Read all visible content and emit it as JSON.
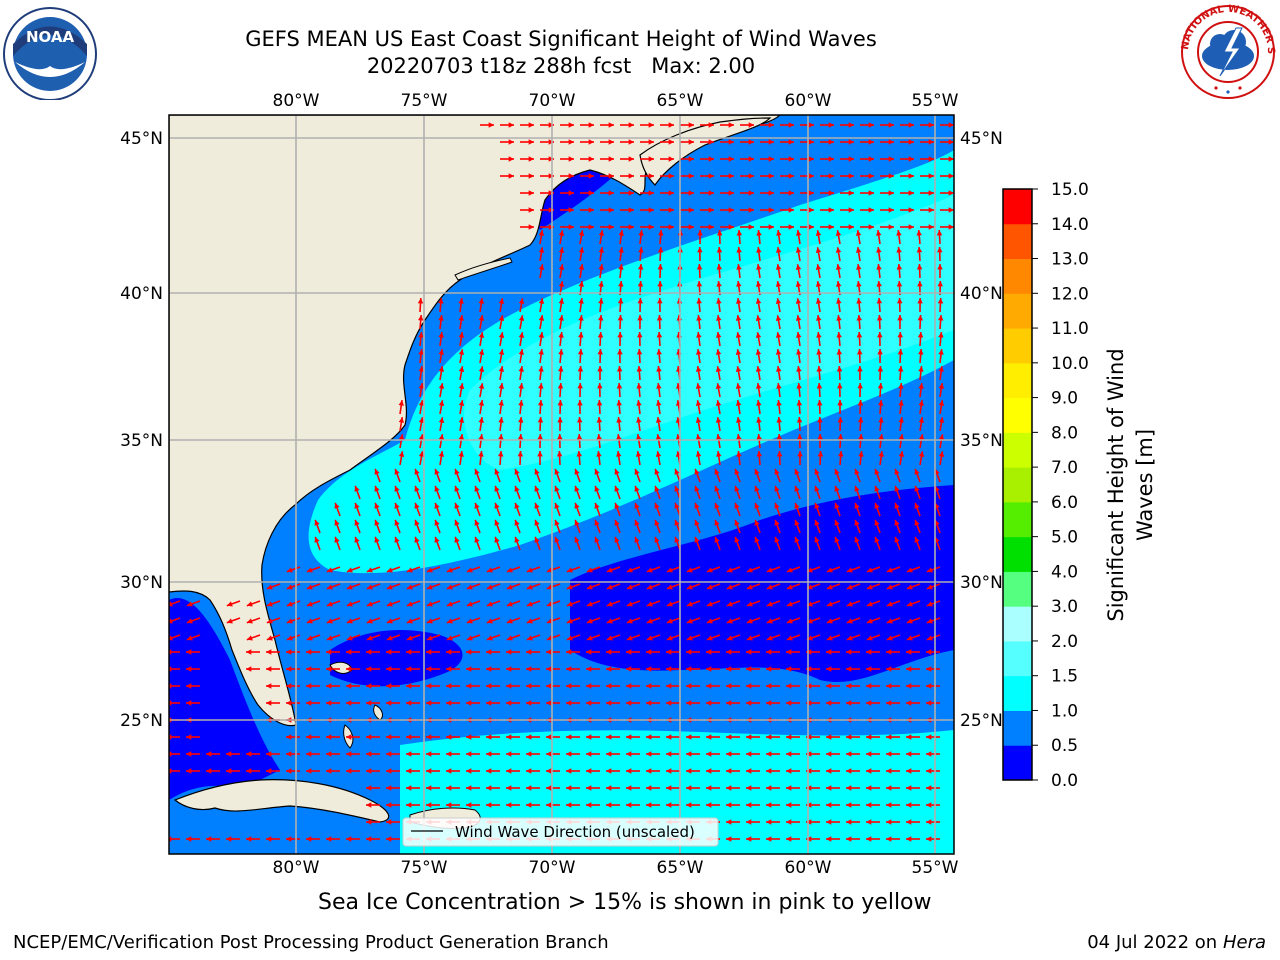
{
  "header": {
    "title_line1": "GEFS MEAN US East Coast Significant Height of Wind Waves",
    "title_line2": "20220703 t18z 288h fcst   Max: 2.00"
  },
  "map": {
    "lon_labels": [
      "80°W",
      "75°W",
      "70°W",
      "65°W",
      "60°W",
      "55°W"
    ],
    "lat_labels": [
      "45°N",
      "40°N",
      "35°N",
      "30°N",
      "25°N"
    ],
    "legend_label": "Wind Wave Direction (unscaled)",
    "arrow_color": "#ff0000",
    "land_color": "#efecdc"
  },
  "colorbar": {
    "label": "Significant Height of Wind Waves [m]",
    "tick_labels": [
      "0.0",
      "0.5",
      "1.0",
      "1.5",
      "2.0",
      "3.0",
      "4.0",
      "5.0",
      "6.0",
      "7.0",
      "8.0",
      "9.0",
      "10.0",
      "11.0",
      "12.0",
      "13.0",
      "14.0",
      "15.0"
    ],
    "colors": [
      "#0000ff",
      "#0080ff",
      "#00ffff",
      "#55ffff",
      "#aaffff",
      "#55ff80",
      "#00e000",
      "#55ee00",
      "#a8f000",
      "#ccff00",
      "#ffff00",
      "#ffee00",
      "#ffcc00",
      "#ffaa00",
      "#ff8800",
      "#ff5500",
      "#ff0000"
    ]
  },
  "note": "Sea Ice Concentration > 15% is shown in pink to yellow",
  "footer": {
    "left": "NCEP/EMC/Verification Post Processing Product Generation Branch",
    "right_prefix": "04 Jul 2022 on ",
    "right_machine": "Hera"
  },
  "logos": {
    "noaa_text": "NOAA",
    "nws_text": "NATIONAL WEATHER SERVICE"
  }
}
